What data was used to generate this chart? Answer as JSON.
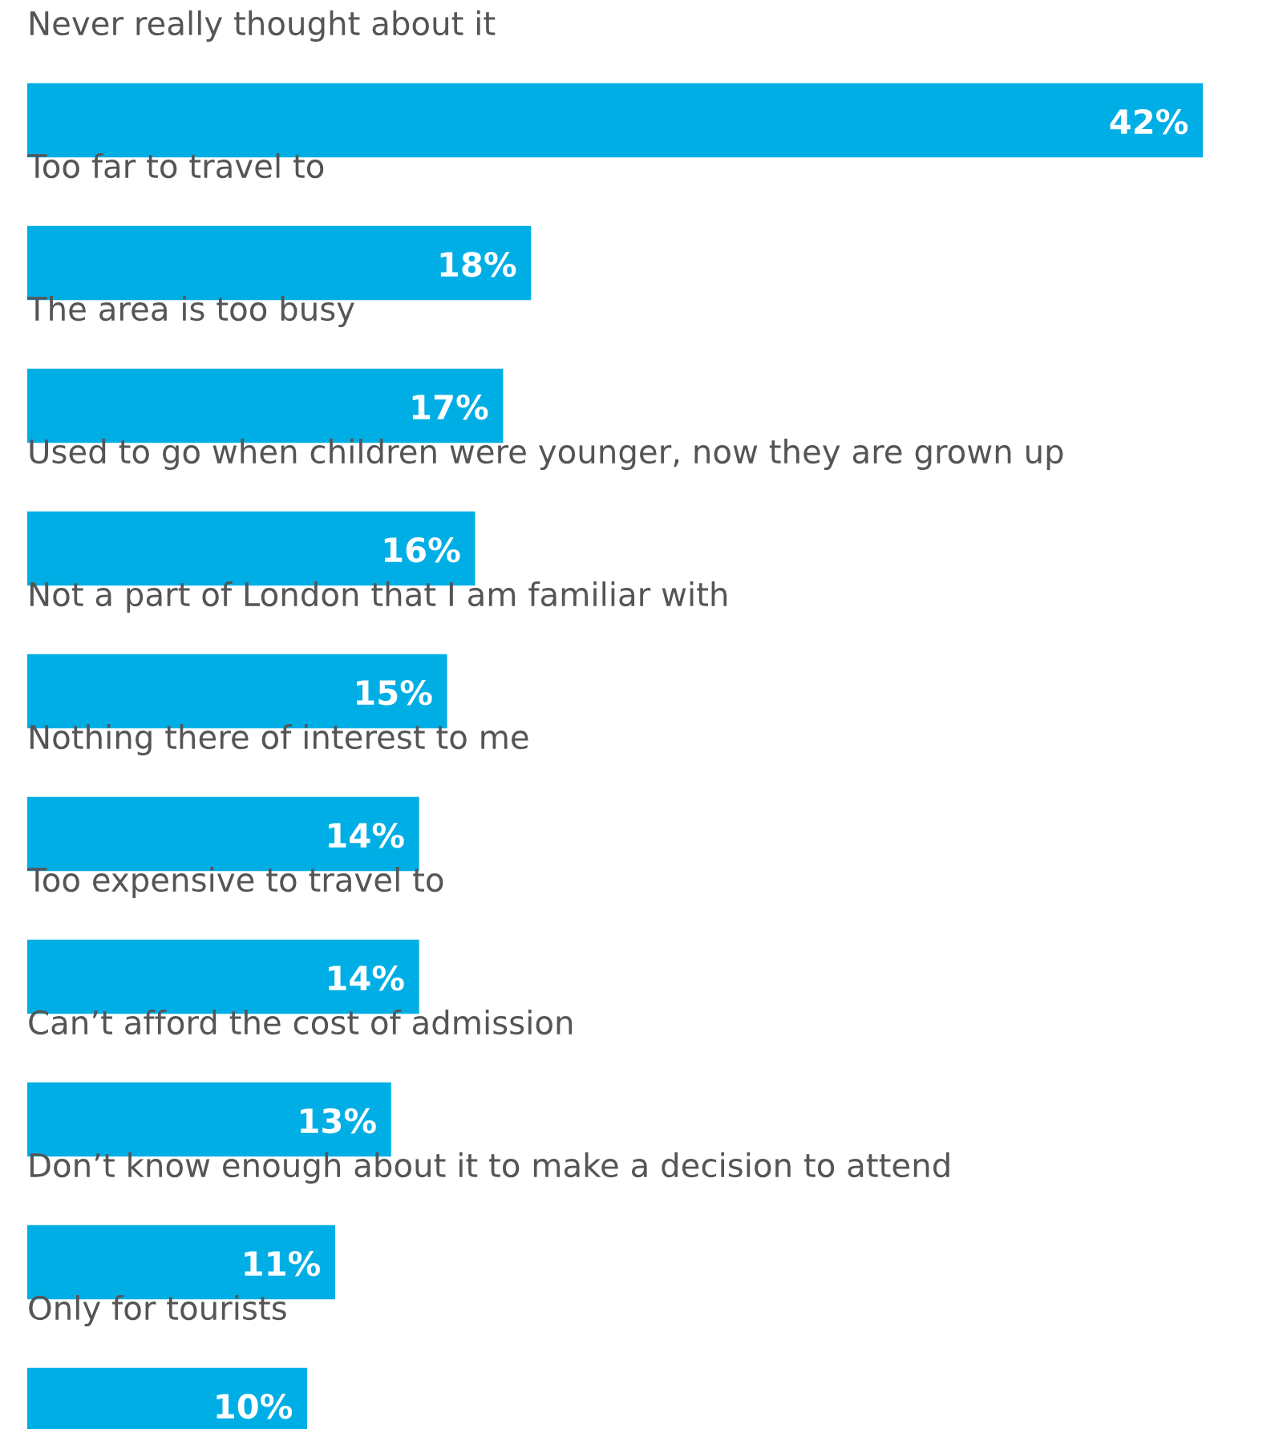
{
  "chart_data": {
    "type": "bar",
    "orientation": "horizontal",
    "categories": [
      "Never really thought about it",
      "Too far to travel to",
      "The area is too busy",
      "Used to go when children were younger, now they are grown up",
      "Not a part of London that I am familiar with",
      "Nothing there of interest to me",
      "Too expensive to travel to",
      "Can’t afford the cost of admission",
      "Don’t know enough about it to make a decision to attend",
      "Only for tourists"
    ],
    "values": [
      42,
      18,
      17,
      16,
      15,
      14,
      14,
      13,
      11,
      10
    ],
    "value_labels": [
      "42%",
      "18%",
      "17%",
      "16%",
      "15%",
      "14%",
      "14%",
      "13%",
      "11%",
      "10%"
    ],
    "color": "#00aee6"
  }
}
